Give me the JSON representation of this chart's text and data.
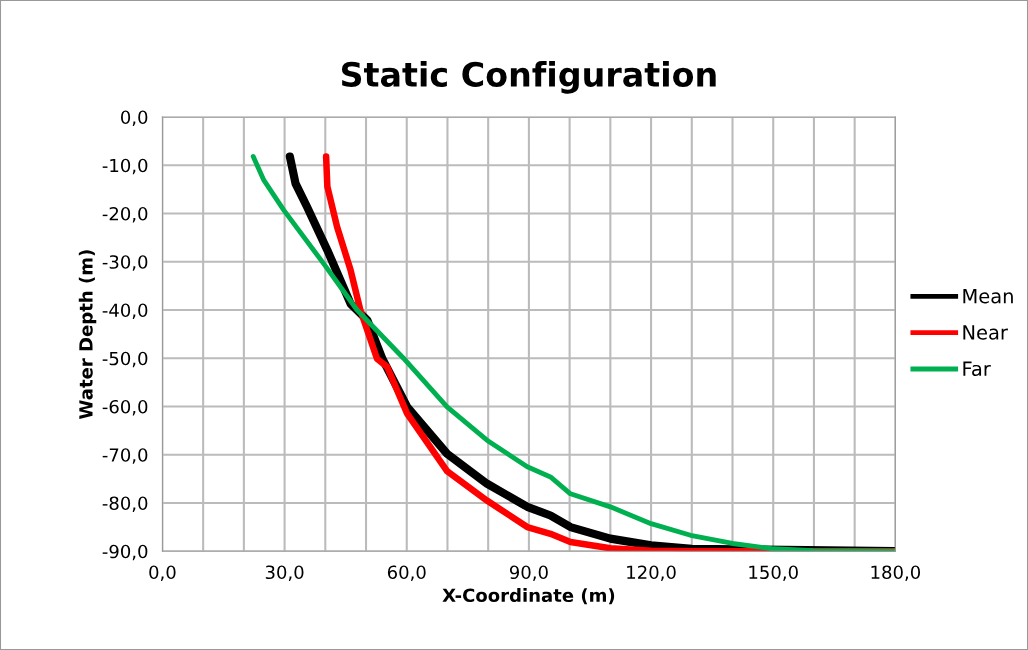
{
  "chart_data": {
    "type": "line",
    "title": "Static Configuration",
    "xlabel": "X-Coordinate (m)",
    "ylabel": "Water Depth (m)",
    "xlim": [
      0,
      180
    ],
    "ylim": [
      -90,
      0
    ],
    "xticks": [
      {
        "value": 0,
        "label": "0,0"
      },
      {
        "value": 10,
        "label": null
      },
      {
        "value": 20,
        "label": null
      },
      {
        "value": 30,
        "label": "30,0"
      },
      {
        "value": 40,
        "label": null
      },
      {
        "value": 50,
        "label": null
      },
      {
        "value": 60,
        "label": "60,0"
      },
      {
        "value": 70,
        "label": null
      },
      {
        "value": 80,
        "label": null
      },
      {
        "value": 90,
        "label": "90,0"
      },
      {
        "value": 100,
        "label": null
      },
      {
        "value": 110,
        "label": null
      },
      {
        "value": 120,
        "label": "120,0"
      },
      {
        "value": 130,
        "label": null
      },
      {
        "value": 140,
        "label": null
      },
      {
        "value": 150,
        "label": "150,0"
      },
      {
        "value": 160,
        "label": null
      },
      {
        "value": 170,
        "label": null
      },
      {
        "value": 180,
        "label": "180,0"
      }
    ],
    "yticks": [
      {
        "value": 0,
        "label": "0,0"
      },
      {
        "value": -10,
        "label": "-10,0"
      },
      {
        "value": -20,
        "label": "-20,0"
      },
      {
        "value": -30,
        "label": "-30,0"
      },
      {
        "value": -40,
        "label": "-40,0"
      },
      {
        "value": -50,
        "label": "-50,0"
      },
      {
        "value": -60,
        "label": "-60,0"
      },
      {
        "value": -70,
        "label": "-70,0"
      },
      {
        "value": -80,
        "label": "-80,0"
      },
      {
        "value": -90,
        "label": "-90,0"
      }
    ],
    "grid": true,
    "legend": "right",
    "marker": "none",
    "line_style": "solid",
    "series": [
      {
        "name": "Mean",
        "color": "#000000",
        "x": [
          31.3,
          32.7,
          35.5,
          40.5,
          46.2,
          50.3,
          54,
          60.1,
          69.9,
          79.7,
          89.6,
          95.3,
          100.2,
          110,
          120,
          130,
          180
        ],
        "values": [
          -8.2,
          -13.8,
          -18.6,
          -27.6,
          -38.7,
          -42.1,
          -50.1,
          -60.1,
          -69.8,
          -76,
          -80.8,
          -82.6,
          -85,
          -87.4,
          -88.8,
          -89.5,
          -90
        ]
      },
      {
        "name": "Near",
        "color": "#ff0000",
        "x": [
          40.2,
          40.5,
          42.9,
          46.2,
          48.6,
          52.7,
          55.2,
          60.1,
          69.9,
          79.7,
          89.6,
          95.3,
          100.2,
          110,
          120,
          130,
          180
        ],
        "values": [
          -8.2,
          -14.4,
          -22.8,
          -31.7,
          -40,
          -50.1,
          -51.8,
          -61.5,
          -73.4,
          -79.5,
          -85,
          -86.4,
          -88.1,
          -89.4,
          -89.9,
          -90,
          -90
        ]
      },
      {
        "name": "Far",
        "color": "#00b050",
        "x": [
          22.3,
          24.9,
          29.8,
          39.6,
          47.8,
          59.2,
          69.9,
          79.7,
          89.6,
          95.3,
          100.2,
          110,
          120,
          129.7,
          140,
          150,
          159.9,
          180
        ],
        "values": [
          -8.2,
          -13.1,
          -19.3,
          -30.4,
          -40,
          -50,
          -60.1,
          -67,
          -72.5,
          -74.6,
          -78.1,
          -80.8,
          -84.3,
          -86.7,
          -88.4,
          -89.5,
          -89.9,
          -90
        ]
      }
    ]
  }
}
